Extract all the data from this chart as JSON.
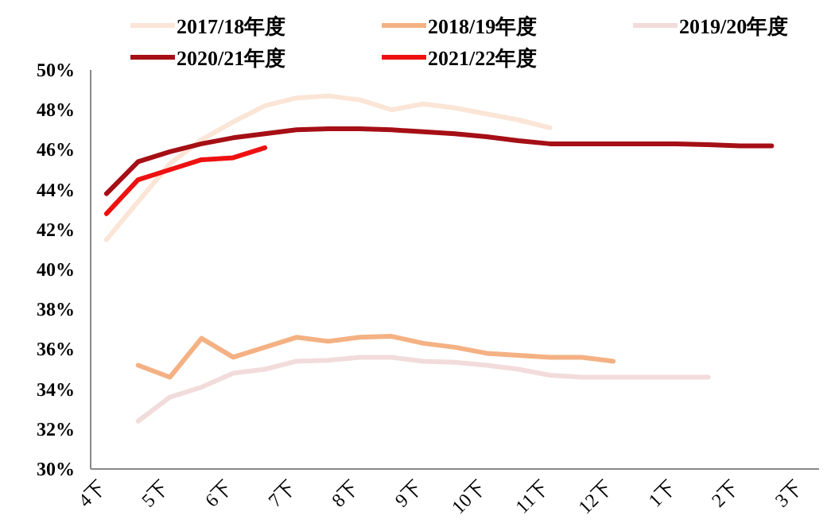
{
  "chart_data": {
    "type": "line",
    "categories": [
      "4下",
      null,
      "5下",
      null,
      "6下",
      null,
      "7下",
      null,
      "8下",
      null,
      "9下",
      null,
      "10下",
      null,
      "11下",
      null,
      "12下",
      null,
      "1下",
      null,
      "2下",
      null,
      "3下"
    ],
    "series": [
      {
        "name": "2017/18年度",
        "color": "#fbe5d6",
        "values": [
          41.5,
          43.4,
          45.3,
          46.5,
          47.4,
          48.2,
          48.6,
          48.7,
          48.5,
          48.0,
          48.3,
          48.1,
          47.8,
          47.5,
          47.1,
          null,
          null,
          null,
          null,
          null,
          null,
          null,
          null
        ]
      },
      {
        "name": "2018/19年度",
        "color": "#f4b183",
        "values": [
          null,
          35.2,
          34.6,
          36.55,
          35.6,
          36.1,
          36.6,
          36.4,
          36.6,
          36.65,
          36.3,
          36.1,
          35.8,
          35.7,
          35.6,
          35.6,
          35.4,
          null,
          null,
          null,
          null,
          null,
          null
        ]
      },
      {
        "name": "2019/20年度",
        "color": "#f2dcdb",
        "values": [
          null,
          32.4,
          33.6,
          34.1,
          34.8,
          35.0,
          35.4,
          35.45,
          35.6,
          35.6,
          35.4,
          35.35,
          35.2,
          35.0,
          34.7,
          34.6,
          34.6,
          34.6,
          34.6,
          34.6,
          null,
          null,
          null
        ]
      },
      {
        "name": "2020/21年度",
        "color": "#a50f15",
        "values": [
          43.8,
          45.4,
          45.9,
          46.3,
          46.6,
          46.8,
          47.0,
          47.05,
          47.05,
          47.0,
          46.9,
          46.8,
          46.65,
          46.45,
          46.3,
          46.3,
          46.3,
          46.3,
          46.3,
          46.25,
          46.2,
          46.2,
          null
        ]
      },
      {
        "name": "2021/22年度",
        "color": "#ee1111",
        "values": [
          42.8,
          44.5,
          45.0,
          45.5,
          45.6,
          46.1,
          null,
          null,
          null,
          null,
          null,
          null,
          null,
          null,
          null,
          null,
          null,
          null,
          null,
          null,
          null,
          null,
          null
        ]
      }
    ],
    "ylim": [
      30,
      50
    ],
    "yticks": [
      {
        "value": 30,
        "label": "30%"
      },
      {
        "value": 32,
        "label": "32%"
      },
      {
        "value": 34,
        "label": "34%"
      },
      {
        "value": 36,
        "label": "36%"
      },
      {
        "value": 38,
        "label": "38%"
      },
      {
        "value": 40,
        "label": "40%"
      },
      {
        "value": 42,
        "label": "42%"
      },
      {
        "value": 44,
        "label": "44%"
      },
      {
        "value": 46,
        "label": "46%"
      },
      {
        "value": 48,
        "label": "48%"
      },
      {
        "value": 50,
        "label": "50%"
      }
    ],
    "grid": false,
    "legend": "top",
    "marker": "none",
    "line_style": "solid"
  }
}
